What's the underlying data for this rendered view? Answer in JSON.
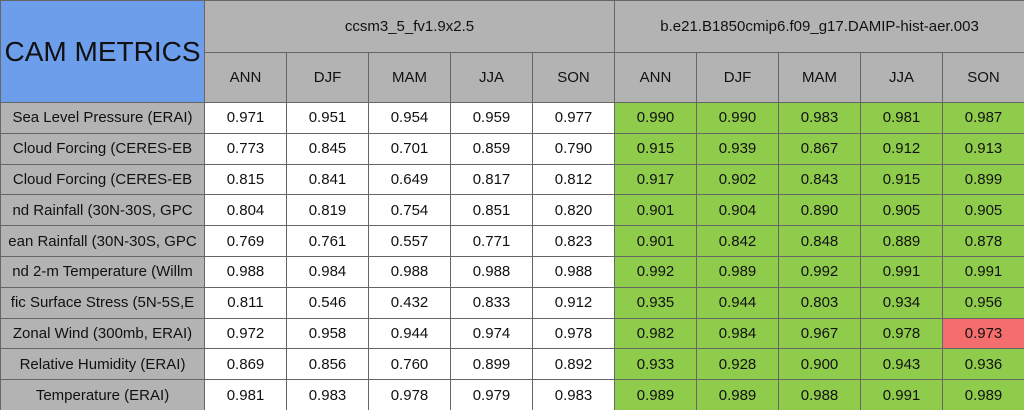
{
  "header": {
    "title": "CAM METRICS",
    "title_color": "#6d9eeb",
    "groups": [
      {
        "name": "ccsm3_5_fv1.9x2.5",
        "color": "#ffffff"
      },
      {
        "name": "b.e21.B1850cmip6.f09_g17.DAMIP-hist-aer.003",
        "color": "#8fcc4c"
      }
    ],
    "seasons": [
      "ANN",
      "DJF",
      "MAM",
      "JJA",
      "SON"
    ]
  },
  "table": {
    "rows": [
      {
        "label": "Sea Level Pressure (ERAI)",
        "values": [
          "0.971",
          "0.951",
          "0.954",
          "0.959",
          "0.977",
          "0.990",
          "0.990",
          "0.983",
          "0.981",
          "0.987"
        ]
      },
      {
        "label": "Cloud Forcing (CERES-EB",
        "values": [
          "0.773",
          "0.845",
          "0.701",
          "0.859",
          "0.790",
          "0.915",
          "0.939",
          "0.867",
          "0.912",
          "0.913"
        ]
      },
      {
        "label": "Cloud Forcing (CERES-EB",
        "values": [
          "0.815",
          "0.841",
          "0.649",
          "0.817",
          "0.812",
          "0.917",
          "0.902",
          "0.843",
          "0.915",
          "0.899"
        ]
      },
      {
        "label": "nd Rainfall (30N-30S, GPC",
        "values": [
          "0.804",
          "0.819",
          "0.754",
          "0.851",
          "0.820",
          "0.901",
          "0.904",
          "0.890",
          "0.905",
          "0.905"
        ]
      },
      {
        "label": "ean Rainfall (30N-30S, GPC",
        "values": [
          "0.769",
          "0.761",
          "0.557",
          "0.771",
          "0.823",
          "0.901",
          "0.842",
          "0.848",
          "0.889",
          "0.878"
        ]
      },
      {
        "label": "nd 2-m Temperature (Willm",
        "values": [
          "0.988",
          "0.984",
          "0.988",
          "0.988",
          "0.988",
          "0.992",
          "0.989",
          "0.992",
          "0.991",
          "0.991"
        ]
      },
      {
        "label": "fic Surface Stress (5N-5S,E",
        "values": [
          "0.811",
          "0.546",
          "0.432",
          "0.833",
          "0.912",
          "0.935",
          "0.944",
          "0.803",
          "0.934",
          "0.956"
        ]
      },
      {
        "label": "Zonal Wind (300mb, ERAI)",
        "values": [
          "0.972",
          "0.958",
          "0.944",
          "0.974",
          "0.978",
          "0.982",
          "0.984",
          "0.967",
          "0.978",
          "0.973"
        ]
      },
      {
        "label": "Relative Humidity (ERAI)",
        "values": [
          "0.869",
          "0.856",
          "0.760",
          "0.899",
          "0.892",
          "0.933",
          "0.928",
          "0.900",
          "0.943",
          "0.936"
        ]
      },
      {
        "label": "Temperature (ERAI)",
        "values": [
          "0.981",
          "0.983",
          "0.978",
          "0.979",
          "0.983",
          "0.989",
          "0.989",
          "0.988",
          "0.991",
          "0.989"
        ]
      }
    ],
    "highlights": [
      {
        "row": 7,
        "col": 9,
        "color": "#f46e6e"
      }
    ]
  }
}
